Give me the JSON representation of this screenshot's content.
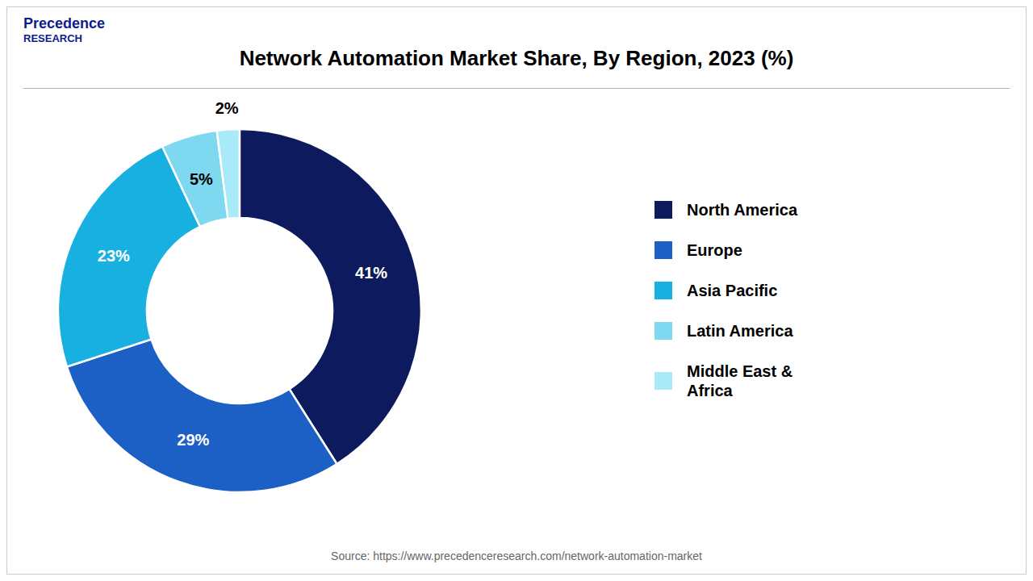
{
  "chart_data": {
    "type": "pie",
    "title": "Network Automation Market Share, By Region, 2023 (%)",
    "categories": [
      "North America",
      "Europe",
      "Asia Pacific",
      "Latin America",
      "Middle East &\nAfrica"
    ],
    "values": [
      41,
      29,
      23,
      5,
      2
    ],
    "value_labels": [
      "41%",
      "29%",
      "23%",
      "5%",
      "2%"
    ],
    "colors": [
      "#0d1b5e",
      "#1c5fc5",
      "#17b0e0",
      "#7ed8f0",
      "#a8eaf8"
    ],
    "data_labels": true,
    "legend": "right",
    "annotations": [
      "Precedence",
      "RESEARCH",
      "Source: https://www.precedenceresearch.com/network-automation-market"
    ]
  }
}
